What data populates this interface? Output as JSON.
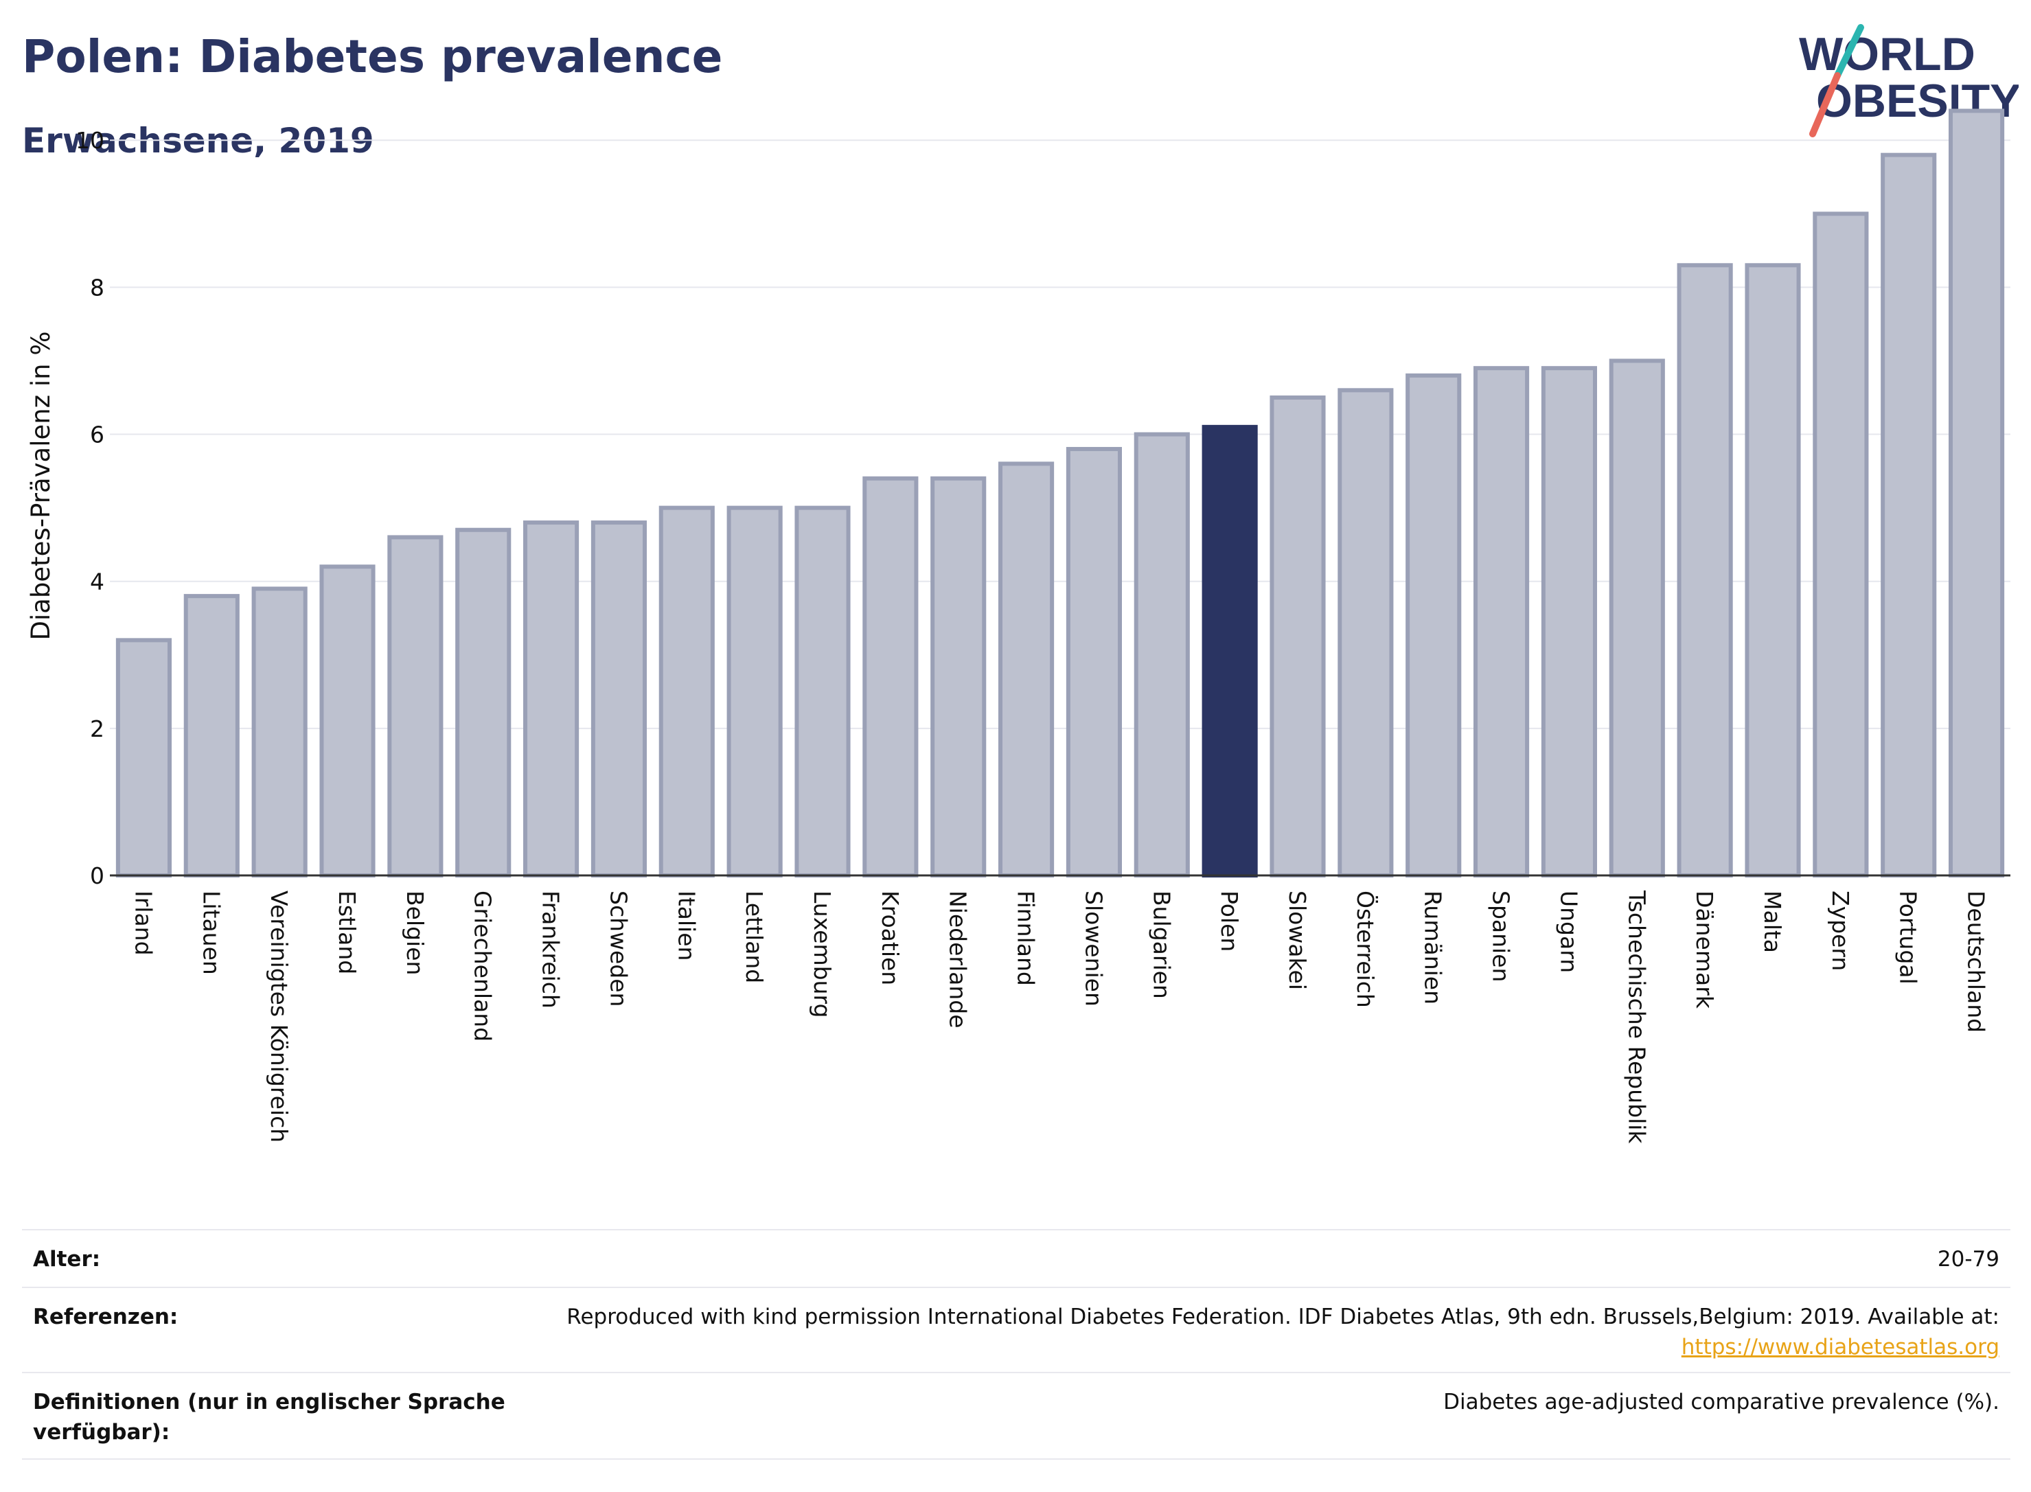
{
  "header": {
    "title": "Polen: Diabetes prevalence",
    "subtitle": "Erwachsene, 2019"
  },
  "logo": {
    "line1": "WORLD",
    "line2": "OBESITY",
    "accent_teal": "#2bb5b0",
    "accent_coral": "#e8675a",
    "text_color": "#2a3462"
  },
  "colors": {
    "bar_default": "#bdc1cf",
    "bar_border": "#9aa0b6",
    "bar_highlight": "#2a3462",
    "grid": "#e6e7ee"
  },
  "chart_data": {
    "type": "bar",
    "title": "Polen: Diabetes prevalence",
    "subtitle": "Erwachsene, 2019",
    "xlabel": "",
    "ylabel": "Diabetes-Prävalenz in %",
    "ylim": [
      0,
      10.6
    ],
    "yticks": [
      0,
      2,
      4,
      6,
      8,
      10
    ],
    "grid": true,
    "highlight": "Polen",
    "categories": [
      "Irland",
      "Litauen",
      "Vereinigtes Königreich",
      "Estland",
      "Belgien",
      "Griechenland",
      "Frankreich",
      "Schweden",
      "Italien",
      "Lettland",
      "Luxemburg",
      "Kroatien",
      "Niederlande",
      "Finnland",
      "Slowenien",
      "Bulgarien",
      "Polen",
      "Slowakei",
      "Österreich",
      "Rumänien",
      "Spanien",
      "Ungarn",
      "Tschechische Republik",
      "Dänemark",
      "Malta",
      "Zypern",
      "Portugal",
      "Deutschland"
    ],
    "values": [
      3.2,
      3.8,
      3.9,
      4.2,
      4.6,
      4.7,
      4.8,
      4.8,
      5.0,
      5.0,
      5.0,
      5.4,
      5.4,
      5.6,
      5.8,
      6.0,
      6.1,
      6.5,
      6.6,
      6.8,
      6.9,
      6.9,
      7.0,
      8.3,
      8.3,
      9.0,
      9.8,
      10.4
    ]
  },
  "info": {
    "age_label": "Alter:",
    "age_value": "20-79",
    "references_label": "Referenzen:",
    "references_text": "Reproduced with kind permission International Diabetes Federation. IDF Diabetes Atlas, 9th edn. Brussels,Belgium: 2019. Available at:",
    "references_link": "https://www.diabetesatlas.org",
    "definitions_label": "Definitionen (nur in englischer Sprache verfügbar):",
    "definitions_value": "Diabetes age-adjusted comparative prevalence (%)."
  }
}
